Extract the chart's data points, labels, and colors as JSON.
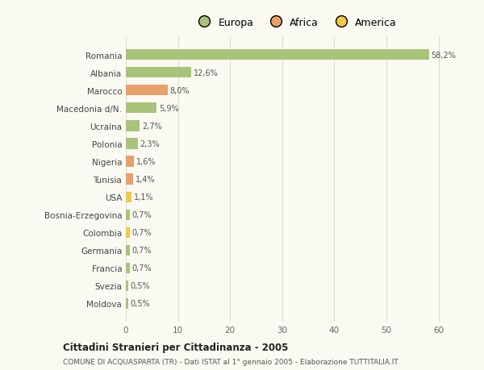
{
  "countries": [
    "Romania",
    "Albania",
    "Marocco",
    "Macedonia d/N.",
    "Ucraina",
    "Polonia",
    "Nigeria",
    "Tunisia",
    "USA",
    "Bosnia-Erzegovina",
    "Colombia",
    "Germania",
    "Francia",
    "Svezia",
    "Moldova"
  ],
  "values": [
    58.2,
    12.6,
    8.0,
    5.9,
    2.7,
    2.3,
    1.6,
    1.4,
    1.1,
    0.7,
    0.7,
    0.7,
    0.7,
    0.5,
    0.5
  ],
  "colors": [
    "#a8c47a",
    "#a8c47a",
    "#e8a06a",
    "#a8c47a",
    "#a8c47a",
    "#a8c47a",
    "#e8a06a",
    "#e8a06a",
    "#f0c84a",
    "#a8c47a",
    "#f0c84a",
    "#a8c47a",
    "#a8c47a",
    "#a8c47a",
    "#a8c47a"
  ],
  "labels": [
    "58,2%",
    "12,6%",
    "8,0%",
    "5,9%",
    "2,7%",
    "2,3%",
    "1,6%",
    "1,4%",
    "1,1%",
    "0,7%",
    "0,7%",
    "0,7%",
    "0,7%",
    "0,5%",
    "0,5%"
  ],
  "legend": [
    {
      "label": "Europa",
      "color": "#a8c47a"
    },
    {
      "label": "Africa",
      "color": "#e8a06a"
    },
    {
      "label": "America",
      "color": "#f0c84a"
    }
  ],
  "xlim": [
    0,
    65
  ],
  "xticks": [
    0,
    10,
    20,
    30,
    40,
    50,
    60
  ],
  "title": "Cittadini Stranieri per Cittadinanza - 2005",
  "subtitle": "COMUNE DI ACQUASPARTA (TR) - Dati ISTAT al 1° gennaio 2005 - Elaborazione TUTTITALIA.IT",
  "background_color": "#fafaf2",
  "grid_color": "#ddddcc",
  "bar_height": 0.6
}
